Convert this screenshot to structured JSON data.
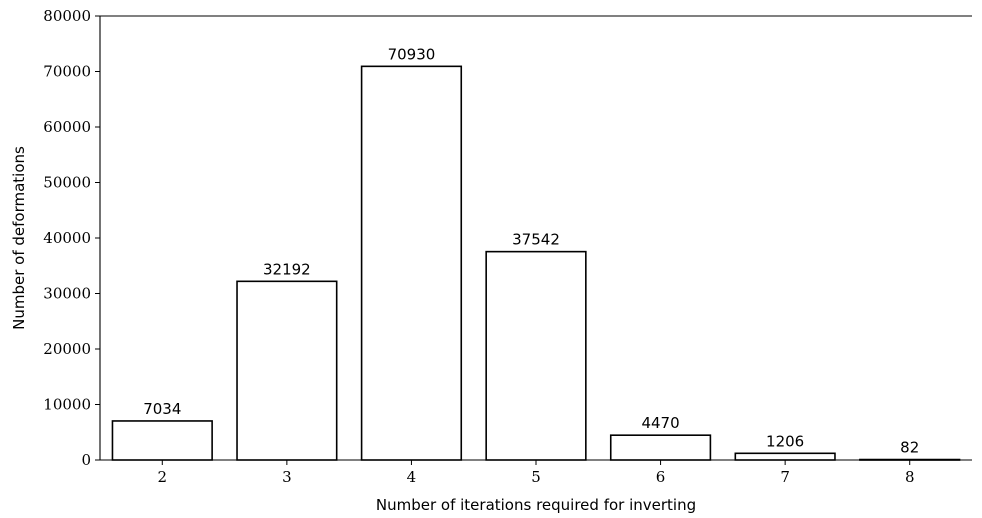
{
  "chart_data": {
    "type": "bar",
    "categories": [
      "2",
      "3",
      "4",
      "5",
      "6",
      "7",
      "8"
    ],
    "values": [
      7034,
      32192,
      70930,
      37542,
      4470,
      1206,
      82
    ],
    "data_labels": [
      "7034",
      "32192",
      "70930",
      "37542",
      "4470",
      "1206",
      "82"
    ],
    "title": "",
    "xlabel": "Number of iterations required for inverting",
    "ylabel": "Number of deformations",
    "ylim": [
      0,
      80000
    ],
    "yticks": [
      0,
      10000,
      20000,
      30000,
      40000,
      50000,
      60000,
      70000,
      80000
    ],
    "ytick_labels": [
      "0",
      "10000",
      "20000",
      "30000",
      "40000",
      "50000",
      "60000",
      "70000",
      "80000"
    ],
    "grid": false,
    "bar_fill": "#ffffff",
    "bar_edge": "#000000"
  }
}
